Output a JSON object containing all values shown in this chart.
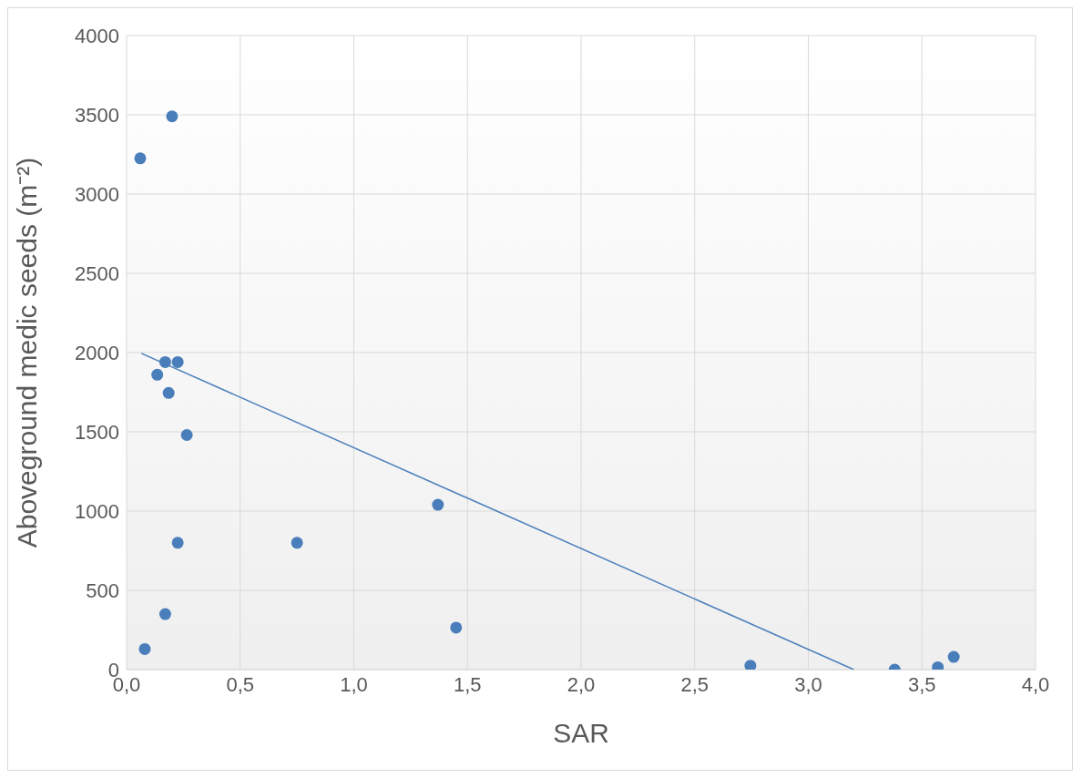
{
  "chart_data": {
    "type": "scatter",
    "xlabel": "SAR",
    "ylabel": "Aboveground  medic seeds (m⁻²)",
    "xlim": [
      0,
      4
    ],
    "xticks": [
      {
        "value": 0,
        "label": "0,0"
      },
      {
        "value": 0.5,
        "label": "0,5"
      },
      {
        "value": 1,
        "label": "1,0"
      },
      {
        "value": 1.5,
        "label": "1,5"
      },
      {
        "value": 2,
        "label": "2,0"
      },
      {
        "value": 2.5,
        "label": "2,5"
      },
      {
        "value": 3,
        "label": "3,0"
      },
      {
        "value": 3.5,
        "label": "3,5"
      },
      {
        "value": 4,
        "label": "4,0"
      }
    ],
    "ylim": [
      0,
      4000
    ],
    "yticks": [
      0,
      500,
      1000,
      1500,
      2000,
      2500,
      3000,
      3500,
      4000
    ],
    "grid": true,
    "marker": "circle",
    "series": [
      {
        "color": "#4a7ebb",
        "x": [
          0.06,
          0.2,
          0.17,
          0.225,
          0.135,
          0.185,
          0.265,
          0.225,
          0.75,
          1.37,
          1.45,
          0.17,
          0.08,
          2.745,
          3.38,
          3.57,
          3.64
        ],
        "values": [
          3225,
          3490,
          1940,
          1940,
          1860,
          1745,
          1480,
          800,
          800,
          1040,
          265,
          350,
          130,
          25,
          0,
          15,
          80
        ]
      },
      {
        "type": "line",
        "marker": "none",
        "color": "#4a7ebb",
        "x": [
          0.065,
          3.2
        ],
        "values": [
          1995,
          0
        ]
      }
    ]
  }
}
